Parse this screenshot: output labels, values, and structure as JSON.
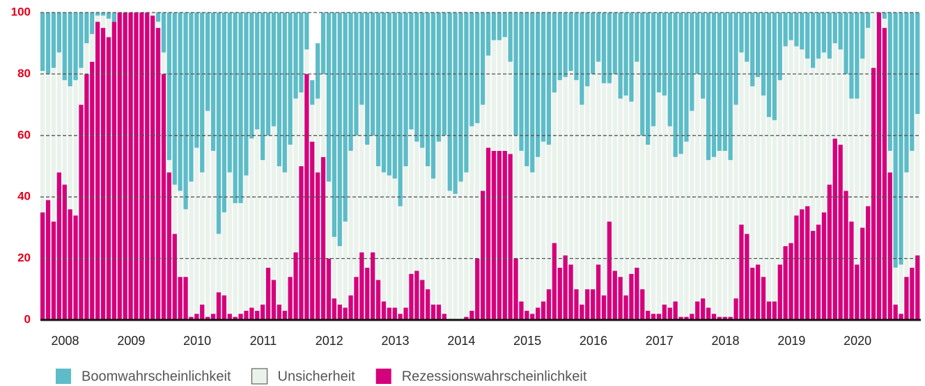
{
  "chart_data": {
    "type": "stacked_bar",
    "categories": [
      null,
      null,
      null,
      null,
      "2008",
      null,
      null,
      null,
      null,
      null,
      null,
      null,
      null,
      null,
      null,
      null,
      "2009",
      null,
      null,
      null,
      null,
      null,
      null,
      null,
      null,
      null,
      null,
      null,
      "2010",
      null,
      null,
      null,
      null,
      null,
      null,
      null,
      null,
      null,
      null,
      null,
      "2011",
      null,
      null,
      null,
      null,
      null,
      null,
      null,
      null,
      null,
      null,
      null,
      "2012",
      null,
      null,
      null,
      null,
      null,
      null,
      null,
      null,
      null,
      null,
      null,
      "2013",
      null,
      null,
      null,
      null,
      null,
      null,
      null,
      null,
      null,
      null,
      null,
      "2014",
      null,
      null,
      null,
      null,
      null,
      null,
      null,
      null,
      null,
      null,
      null,
      "2015",
      null,
      null,
      null,
      null,
      null,
      null,
      null,
      null,
      null,
      null,
      null,
      "2016",
      null,
      null,
      null,
      null,
      null,
      null,
      null,
      null,
      null,
      null,
      null,
      "2017",
      null,
      null,
      null,
      null,
      null,
      null,
      null,
      null,
      null,
      null,
      null,
      "2018",
      null,
      null,
      null,
      null,
      null,
      null,
      null,
      null,
      null,
      null,
      null,
      "2019",
      null,
      null,
      null,
      null,
      null,
      null,
      null,
      null,
      null,
      null,
      null,
      "2020",
      null,
      null,
      null,
      null,
      null,
      null,
      null,
      null,
      null,
      null,
      null
    ],
    "series": [
      {
        "name": "Boomwahrscheinlichkeit",
        "color": "#5dbcc7",
        "values": [
          19,
          20,
          18,
          13,
          22,
          24,
          22,
          18,
          10,
          7,
          1,
          1,
          2,
          3,
          0,
          0,
          0,
          0,
          0,
          0,
          0,
          3,
          13,
          48,
          56,
          58,
          64,
          55,
          44,
          52,
          32,
          45,
          72,
          65,
          52,
          62,
          62,
          53,
          41,
          38,
          48,
          40,
          37,
          50,
          52,
          43,
          28,
          26,
          12,
          8,
          18,
          20,
          55,
          73,
          76,
          68,
          45,
          40,
          30,
          43,
          40,
          50,
          52,
          53,
          54,
          63,
          50,
          38,
          42,
          44,
          50,
          54,
          42,
          40,
          58,
          59,
          55,
          52,
          37,
          36,
          30,
          14,
          9,
          9,
          8,
          16,
          40,
          45,
          50,
          52,
          47,
          42,
          43,
          26,
          22,
          21,
          19,
          22,
          30,
          24,
          20,
          16,
          23,
          23,
          20,
          28,
          27,
          29,
          16,
          40,
          43,
          37,
          26,
          27,
          37,
          47,
          46,
          42,
          32,
          20,
          28,
          48,
          47,
          45,
          45,
          48,
          30,
          13,
          16,
          24,
          21,
          27,
          34,
          35,
          22,
          11,
          9,
          11,
          12,
          15,
          18,
          15,
          13,
          15,
          10,
          12,
          20,
          28,
          28,
          15,
          5,
          0,
          0,
          2,
          45,
          83,
          82,
          52,
          45,
          33
        ]
      },
      {
        "name": "Unsicherheit",
        "color": "#eaf2ec",
        "values": [
          46,
          41,
          50,
          39,
          34,
          40,
          44,
          12,
          10,
          9,
          2,
          4,
          6,
          0,
          0,
          0,
          0,
          0,
          0,
          0,
          1,
          2,
          7,
          4,
          16,
          28,
          22,
          44,
          54,
          43,
          67,
          53,
          19,
          27,
          46,
          37,
          36,
          44,
          55,
          59,
          47,
          43,
          50,
          45,
          45,
          43,
          50,
          24,
          8,
          12,
          24,
          27,
          25,
          20,
          19,
          28,
          47,
          46,
          48,
          40,
          38,
          37,
          42,
          43,
          42,
          35,
          46,
          47,
          42,
          43,
          40,
          41,
          53,
          58,
          42,
          41,
          45,
          47,
          60,
          44,
          28,
          30,
          36,
          36,
          37,
          30,
          40,
          49,
          47,
          46,
          49,
          52,
          47,
          49,
          61,
          58,
          63,
          68,
          65,
          66,
          70,
          66,
          69,
          45,
          64,
          58,
          65,
          56,
          67,
          50,
          54,
          61,
          72,
          68,
          59,
          47,
          53,
          57,
          66,
          74,
          65,
          48,
          51,
          54,
          54,
          51,
          63,
          56,
          56,
          59,
          61,
          59,
          60,
          59,
          60,
          65,
          66,
          55,
          52,
          48,
          53,
          54,
          52,
          41,
          31,
          31,
          38,
          40,
          54,
          55,
          58,
          18,
          0,
          3,
          7,
          12,
          16,
          34,
          38,
          46
        ]
      },
      {
        "name": "Rezessionswahrscheinlichkeit",
        "color": "#d5007b",
        "values": [
          35,
          39,
          32,
          48,
          44,
          36,
          34,
          70,
          80,
          84,
          97,
          95,
          92,
          97,
          100,
          100,
          100,
          100,
          100,
          100,
          99,
          95,
          80,
          48,
          28,
          14,
          14,
          1,
          2,
          5,
          1,
          2,
          9,
          8,
          2,
          1,
          2,
          3,
          4,
          3,
          5,
          17,
          13,
          5,
          3,
          14,
          22,
          50,
          80,
          58,
          48,
          53,
          20,
          7,
          5,
          4,
          8,
          14,
          22,
          17,
          22,
          13,
          6,
          4,
          4,
          2,
          4,
          15,
          16,
          13,
          10,
          5,
          5,
          2,
          0,
          0,
          0,
          1,
          3,
          20,
          42,
          56,
          55,
          55,
          55,
          54,
          20,
          6,
          3,
          2,
          4,
          6,
          10,
          25,
          17,
          21,
          18,
          10,
          5,
          10,
          10,
          18,
          8,
          32,
          16,
          14,
          8,
          15,
          17,
          10,
          3,
          2,
          2,
          5,
          4,
          6,
          1,
          1,
          2,
          6,
          7,
          4,
          2,
          1,
          1,
          1,
          7,
          31,
          28,
          17,
          18,
          14,
          6,
          6,
          18,
          24,
          25,
          34,
          36,
          37,
          29,
          31,
          35,
          44,
          59,
          57,
          42,
          32,
          18,
          30,
          37,
          82,
          100,
          95,
          48,
          5,
          2,
          14,
          17,
          21
        ]
      }
    ],
    "ylim": [
      0,
      100
    ],
    "yticks": [
      0,
      20,
      40,
      60,
      80,
      100
    ],
    "grid": true,
    "legend": "bottom"
  }
}
